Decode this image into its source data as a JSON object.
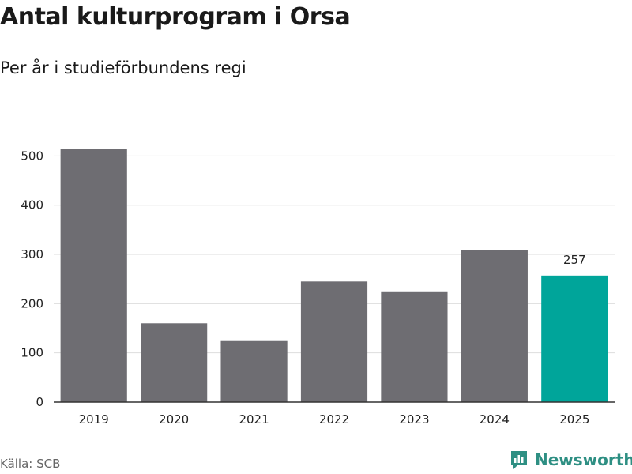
{
  "title": "Antal kulturprogram i Orsa",
  "subtitle": "Per år i studieförbundens regi",
  "source": "Källa: SCB",
  "brand": {
    "name": "Newsworthy",
    "icon": "newsworthy-logo-icon",
    "color": "#2e8f83"
  },
  "colors": {
    "bar": "#6e6d72",
    "highlight": "#00a59a",
    "grid": "#dddddd",
    "axis": "#333333"
  },
  "chart_data": {
    "type": "bar",
    "title": "Antal kulturprogram i Orsa",
    "subtitle": "Per år i studieförbundens regi",
    "xlabel": "",
    "ylabel": "",
    "categories": [
      "2019",
      "2020",
      "2021",
      "2022",
      "2023",
      "2024",
      "2025"
    ],
    "values": [
      514,
      160,
      124,
      245,
      225,
      309,
      257
    ],
    "highlight_index": 6,
    "data_labels": [
      {
        "index": 6,
        "text": "257"
      }
    ],
    "yticks": [
      0,
      100,
      200,
      300,
      400,
      500
    ],
    "ylim": [
      0,
      560
    ],
    "grid": true,
    "legend": "none"
  }
}
